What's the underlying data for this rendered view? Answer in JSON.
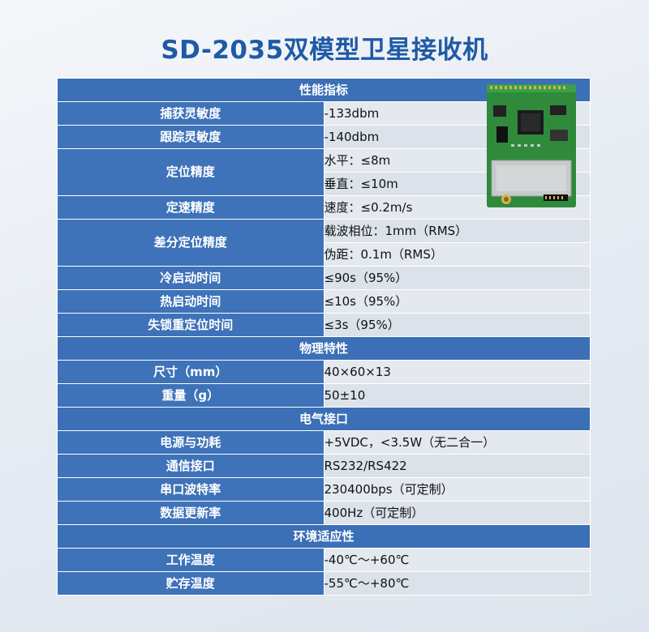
{
  "title": "SD-2035双模型卫星接收机",
  "sections": {
    "performance": "性能指标",
    "physical": "物理特性",
    "electrical": "电气接口",
    "environment": "环境适应性"
  },
  "rows": {
    "capture": {
      "label": "捕获灵敏度",
      "value": "-133dbm"
    },
    "tracking": {
      "label": "跟踪灵敏度",
      "value": "-140dbm"
    },
    "positioning": {
      "label": "定位精度",
      "values": [
        "水平：≤8m",
        "垂直：≤10m"
      ]
    },
    "velocity": {
      "label": "定速精度",
      "value": "速度：≤0.2m/s"
    },
    "differential": {
      "label": "差分定位精度",
      "values": [
        "载波相位：1mm（RMS）",
        "伪距：0.1m（RMS）"
      ]
    },
    "cold_start": {
      "label": "冷启动时间",
      "value": "≤90s（95%）"
    },
    "hot_start": {
      "label": "热启动时间",
      "value": "≤10s（95%）"
    },
    "reacquisition": {
      "label": "失锁重定位时间",
      "value": "≤3s（95%）"
    },
    "size": {
      "label": "尺寸（mm）",
      "value": "40×60×13"
    },
    "weight": {
      "label": "重量（g）",
      "value": "50±10"
    },
    "power": {
      "label": "电源与功耗",
      "value": "+5VDC，<3.5W（无二合一）"
    },
    "comm": {
      "label": "通信接口",
      "value": "RS232/RS422"
    },
    "baud": {
      "label": "串口波特率",
      "value": "230400bps（可定制）"
    },
    "update": {
      "label": "数据更新率",
      "value": "400Hz（可定制）"
    },
    "op_temp": {
      "label": "工作温度",
      "value": "-40℃～+60℃"
    },
    "storage_temp": {
      "label": "贮存温度",
      "value": "-55℃～+80℃"
    }
  },
  "colors": {
    "title": "#1f5aa6",
    "header_bg": "#3e72b9",
    "value_bg": "#e4e9ef"
  }
}
